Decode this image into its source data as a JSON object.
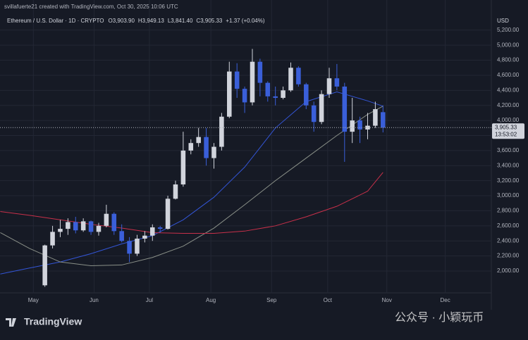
{
  "header": {
    "credit": "svillafuerte21 created with TradingView.com, Oct 30, 2025 10:06 UTC",
    "symbol": "Ethereum / U.S. Dollar · 1D · CRYPTO",
    "ohlc": [
      "O3,903.90",
      "H3,949.13",
      "L3,841.40",
      "C3,905.33",
      "+1.37 (+0.04%)"
    ]
  },
  "footer": {
    "logo": "TradingView",
    "watermark": "公众号 · 小颖玩币"
  },
  "chart_data": {
    "type": "candlestick",
    "currency": "USD",
    "up_color": "#d1d4dc",
    "down_color": "#3a5fd9",
    "x": [
      0,
      1,
      2,
      3,
      4,
      5,
      6,
      7,
      8,
      9,
      10,
      11,
      12,
      13,
      14,
      15,
      16,
      17,
      18,
      19,
      20,
      21,
      22,
      23,
      24,
      25,
      26,
      27,
      28,
      29,
      30,
      31,
      32,
      33,
      34,
      35,
      36,
      37,
      38,
      39,
      40,
      41,
      42,
      43,
      44
    ],
    "open": [
      1810,
      2340,
      2520,
      2560,
      2650,
      2540,
      2660,
      2520,
      2600,
      2760,
      2530,
      2400,
      2230,
      2430,
      2470,
      2580,
      2560,
      2960,
      3150,
      3600,
      3700,
      3780,
      3500,
      3650,
      4050,
      4650,
      4420,
      4240,
      4780,
      4500,
      4320,
      4300,
      4400,
      4700,
      4480,
      4200,
      3980,
      4350,
      4560,
      4450,
      3850,
      4000,
      3880,
      3930,
      4110
    ],
    "high": [
      2350,
      2600,
      2680,
      2700,
      2720,
      2700,
      2670,
      2640,
      2880,
      2780,
      2620,
      2450,
      2480,
      2530,
      2620,
      2600,
      3000,
      3200,
      3850,
      3750,
      3900,
      3900,
      3700,
      4100,
      4780,
      4760,
      4450,
      4950,
      4820,
      4520,
      4450,
      4450,
      4770,
      4720,
      4500,
      4250,
      4400,
      4700,
      4750,
      4500,
      4300,
      4050,
      4100,
      4250,
      4200
    ],
    "low": [
      1790,
      2300,
      2450,
      2480,
      2500,
      2520,
      2480,
      2470,
      2580,
      2480,
      2380,
      2120,
      2200,
      2380,
      2400,
      2510,
      2550,
      2950,
      3120,
      3550,
      3650,
      3400,
      3360,
      3600,
      4030,
      4300,
      4100,
      4200,
      4320,
      4250,
      4200,
      4280,
      4380,
      4450,
      4150,
      3850,
      3950,
      4300,
      4400,
      3450,
      3700,
      3700,
      3750,
      3900,
      3841
    ],
    "close": [
      2340,
      2520,
      2560,
      2650,
      2540,
      2660,
      2520,
      2600,
      2760,
      2530,
      2400,
      2230,
      2430,
      2470,
      2580,
      2560,
      2960,
      3150,
      3600,
      3700,
      3780,
      3500,
      3650,
      4050,
      4650,
      4420,
      4240,
      4780,
      4500,
      4320,
      4300,
      4400,
      4700,
      4480,
      4200,
      3980,
      4350,
      4560,
      4450,
      3850,
      4000,
      3880,
      3930,
      4150,
      3905
    ],
    "series": [
      {
        "color": "#3355d6",
        "x": [
          -5.8,
          -2,
          2,
          6,
          10,
          14,
          18,
          22,
          26,
          30,
          34,
          38,
          42,
          44
        ],
        "values": [
          1960,
          2040,
          2120,
          2230,
          2360,
          2470,
          2680,
          2980,
          3380,
          3900,
          4250,
          4380,
          4260,
          4190
        ]
      },
      {
        "color": "#8a9088",
        "x": [
          -5.8,
          -2,
          2,
          6,
          10,
          14,
          18,
          22,
          26,
          30,
          34,
          38,
          42,
          44
        ],
        "values": [
          2510,
          2300,
          2120,
          2070,
          2080,
          2180,
          2330,
          2570,
          2880,
          3200,
          3500,
          3800,
          4080,
          4190
        ]
      },
      {
        "color": "#c8304a",
        "x": [
          -5.8,
          -2,
          2,
          6,
          10,
          14,
          18,
          22,
          26,
          30,
          34,
          38,
          42,
          44
        ],
        "values": [
          2790,
          2740,
          2680,
          2620,
          2570,
          2510,
          2500,
          2500,
          2530,
          2600,
          2720,
          2860,
          3060,
          3310
        ]
      }
    ],
    "last_price": {
      "value": 3905.33,
      "label": "3,905.33"
    },
    "countdown": "13:53:02",
    "xlim": [
      -5.84,
      58.1
    ],
    "xticks": [
      {
        "value": -1.5,
        "label": "May"
      },
      {
        "value": 6.4,
        "label": "Jun"
      },
      {
        "value": 13.6,
        "label": "Jul"
      },
      {
        "value": 21.6,
        "label": "Aug"
      },
      {
        "value": 29.5,
        "label": "Sep"
      },
      {
        "value": 36.8,
        "label": "Oct"
      },
      {
        "value": 44.5,
        "label": "Nov"
      },
      {
        "value": 52.1,
        "label": "Dec"
      }
    ],
    "ylim": [
      1710,
      5600
    ],
    "yticks": [
      {
        "value": 2000,
        "label": "2,000.00"
      },
      {
        "value": 2200,
        "label": "2,200.00"
      },
      {
        "value": 2400,
        "label": "2,400.00"
      },
      {
        "value": 2600,
        "label": "2,600.00"
      },
      {
        "value": 2800,
        "label": "2,800.00"
      },
      {
        "value": 3000,
        "label": "3,000.00"
      },
      {
        "value": 3200,
        "label": "3,200.00"
      },
      {
        "value": 3400,
        "label": "3,400.00"
      },
      {
        "value": 3600,
        "label": "3,600.00"
      },
      {
        "value": 3800,
        "label": "3,800.00"
      },
      {
        "value": 4000,
        "label": "4,000.00"
      },
      {
        "value": 4200,
        "label": "4,200.00"
      },
      {
        "value": 4400,
        "label": "4,400.00"
      },
      {
        "value": 4600,
        "label": "4,600.00"
      },
      {
        "value": 4800,
        "label": "4,800.00"
      },
      {
        "value": 5000,
        "label": "5,000.00"
      },
      {
        "value": 5200,
        "label": "5,200.00"
      }
    ],
    "grid": true
  }
}
